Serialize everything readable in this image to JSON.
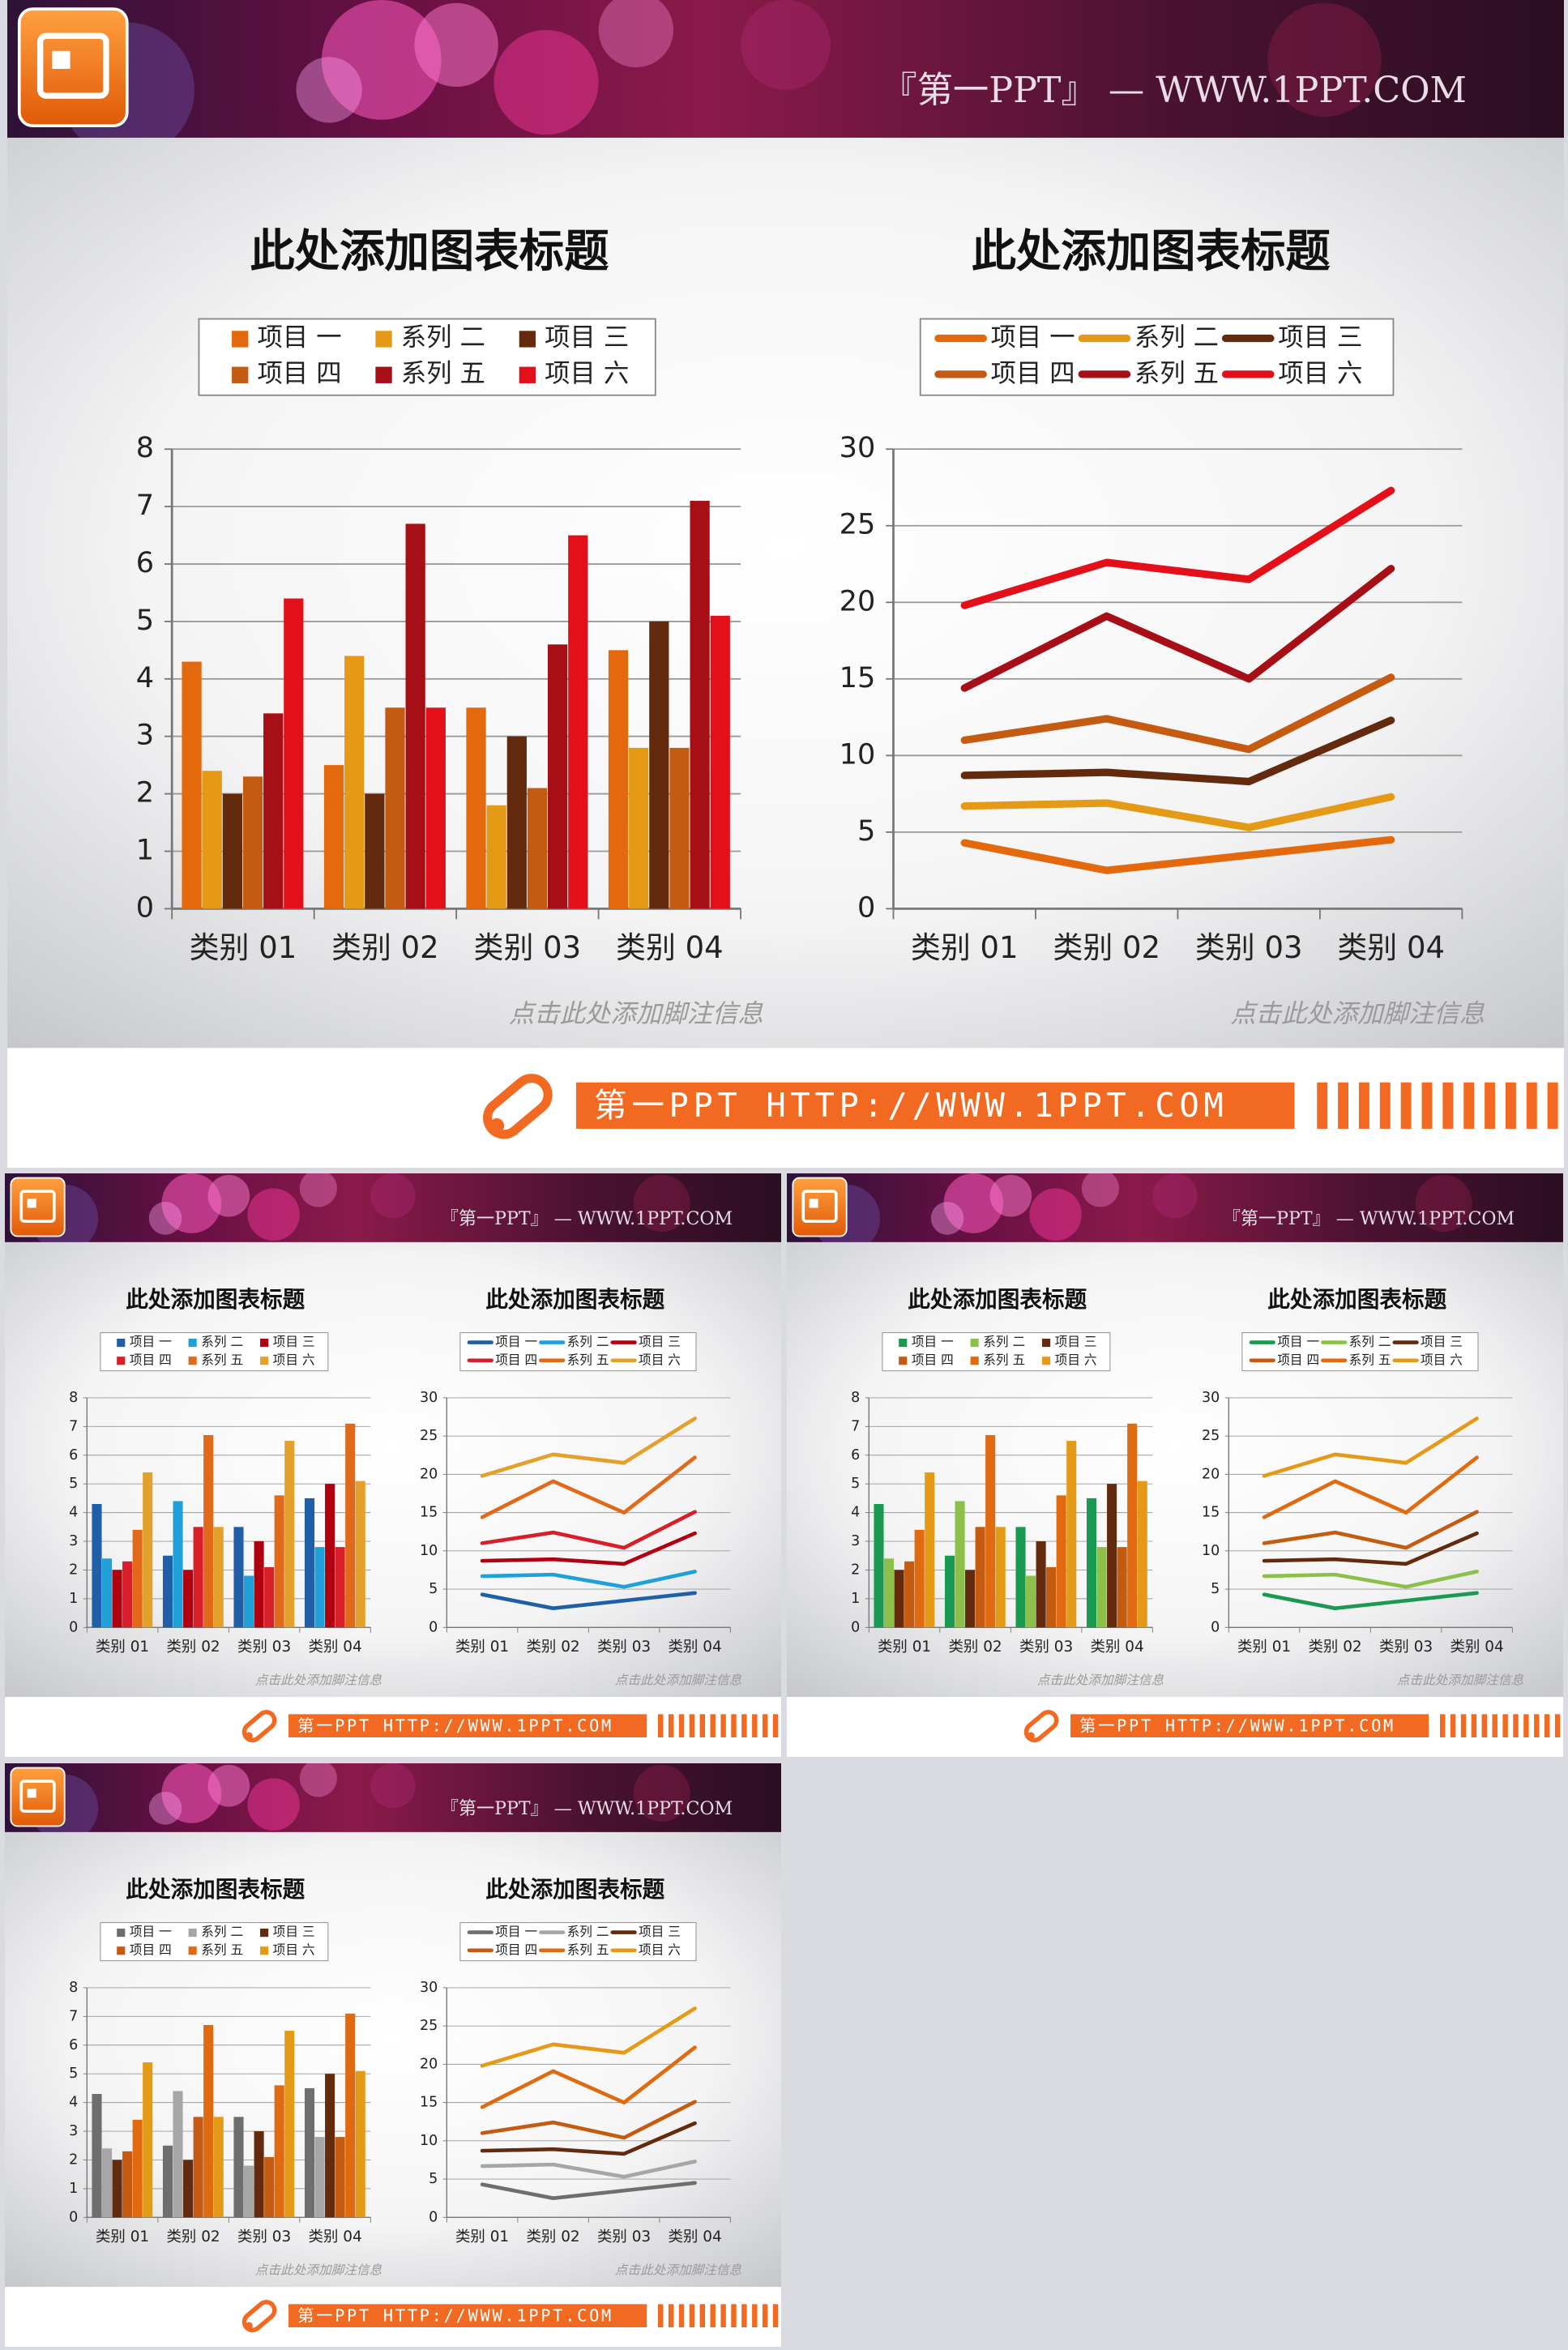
{
  "slides": [
    {
      "brand": "『第一PPT』 — WWW.1PPT.COM",
      "banner": "第一PPT HTTP://WWW.1PPT.COM"
    },
    {
      "brand": "『第一PPT』 — WWW.1PPT.COM",
      "banner": "第一PPT HTTP://WWW.1PPT.COM"
    },
    {
      "brand": "『第一PPT』 — WWW.1PPT.COM",
      "banner": "第一PPT HTTP://WWW.1PPT.COM"
    },
    {
      "brand": "『第一PPT』 — WWW.1PPT.COM",
      "banner": "第一PPT HTTP://WWW.1PPT.COM"
    }
  ],
  "chart_data": [
    {
      "type": "bar",
      "title": "此处添加图表标题",
      "footnote": "点击此处添加脚注信息",
      "categories": [
        "类别 01",
        "类别 02",
        "类别 03",
        "类别 04"
      ],
      "series": [
        {
          "name": "项目 一",
          "color": "#e4680c",
          "values": [
            4.3,
            2.5,
            3.5,
            4.5
          ]
        },
        {
          "name": "系列 二",
          "color": "#e59a17",
          "values": [
            2.4,
            4.4,
            1.8,
            2.8
          ]
        },
        {
          "name": "项目 三",
          "color": "#632a0d",
          "values": [
            2.0,
            2.0,
            3.0,
            5.0
          ]
        },
        {
          "name": "项目 四",
          "color": "#c55a11",
          "values": [
            2.3,
            3.5,
            2.1,
            2.8
          ]
        },
        {
          "name": "系列 五",
          "color": "#a50f15",
          "values": [
            3.4,
            6.7,
            4.6,
            7.1
          ]
        },
        {
          "name": "项目 六",
          "color": "#e3101a",
          "values": [
            5.4,
            3.5,
            6.5,
            5.1
          ]
        }
      ],
      "ylim": [
        0,
        8
      ],
      "yticks": [
        0,
        1,
        2,
        3,
        4,
        5,
        6,
        7,
        8
      ],
      "grid": true
    },
    {
      "type": "stacked_line",
      "title": "此处添加图表标题",
      "footnote": "点击此处添加脚注信息",
      "categories": [
        "类别 01",
        "类别 02",
        "类别 03",
        "类别 04"
      ],
      "series": [
        {
          "name": "项目 一",
          "color": "#e4680c",
          "values": [
            4.3,
            2.5,
            3.5,
            4.5
          ]
        },
        {
          "name": "系列 二",
          "color": "#e59a17",
          "values": [
            2.4,
            4.4,
            1.8,
            2.8
          ]
        },
        {
          "name": "项目 三",
          "color": "#632a0d",
          "values": [
            2.0,
            2.0,
            3.0,
            5.0
          ]
        },
        {
          "name": "项目 四",
          "color": "#c55a11",
          "values": [
            2.3,
            3.5,
            2.1,
            2.8
          ]
        },
        {
          "name": "系列 五",
          "color": "#a50f15",
          "values": [
            3.4,
            6.7,
            4.6,
            7.1
          ]
        },
        {
          "name": "项目 六",
          "color": "#e3101a",
          "values": [
            5.4,
            3.5,
            6.5,
            5.1
          ]
        }
      ],
      "ylim": [
        0,
        30
      ],
      "yticks": [
        0,
        5,
        10,
        15,
        20,
        25,
        30
      ],
      "grid": true
    },
    {
      "type": "bar",
      "title": "此处添加图表标题",
      "footnote": "点击此处添加脚注信息",
      "categories": [
        "类别 01",
        "类别 02",
        "类别 03",
        "类别 04"
      ],
      "series": [
        {
          "name": "项目 一",
          "color": "#1f5fa8",
          "values": [
            4.3,
            2.5,
            3.5,
            4.5
          ]
        },
        {
          "name": "系列 二",
          "color": "#1fa0d8",
          "values": [
            2.4,
            4.4,
            1.8,
            2.8
          ]
        },
        {
          "name": "项目 三",
          "color": "#b00010",
          "values": [
            2.0,
            2.0,
            3.0,
            5.0
          ]
        },
        {
          "name": "项目 四",
          "color": "#d81e28",
          "values": [
            2.3,
            3.5,
            2.1,
            2.8
          ]
        },
        {
          "name": "系列 五",
          "color": "#e06a1a",
          "values": [
            3.4,
            6.7,
            4.6,
            7.1
          ]
        },
        {
          "name": "项目 六",
          "color": "#e3a02a",
          "values": [
            5.4,
            3.5,
            6.5,
            5.1
          ]
        }
      ],
      "ylim": [
        0,
        8
      ],
      "yticks": [
        0,
        1,
        2,
        3,
        4,
        5,
        6,
        7,
        8
      ],
      "grid": true
    },
    {
      "type": "stacked_line",
      "title": "此处添加图表标题",
      "footnote": "点击此处添加脚注信息",
      "categories": [
        "类别 01",
        "类别 02",
        "类别 03",
        "类别 04"
      ],
      "series": [
        {
          "name": "项目 一",
          "color": "#1f5fa8",
          "values": [
            4.3,
            2.5,
            3.5,
            4.5
          ]
        },
        {
          "name": "系列 二",
          "color": "#1fa0d8",
          "values": [
            2.4,
            4.4,
            1.8,
            2.8
          ]
        },
        {
          "name": "项目 三",
          "color": "#b00010",
          "values": [
            2.0,
            2.0,
            3.0,
            5.0
          ]
        },
        {
          "name": "项目 四",
          "color": "#d81e28",
          "values": [
            2.3,
            3.5,
            2.1,
            2.8
          ]
        },
        {
          "name": "系列 五",
          "color": "#e06a1a",
          "values": [
            3.4,
            6.7,
            4.6,
            7.1
          ]
        },
        {
          "name": "项目 六",
          "color": "#e3a02a",
          "values": [
            5.4,
            3.5,
            6.5,
            5.1
          ]
        }
      ],
      "ylim": [
        0,
        30
      ],
      "yticks": [
        0,
        5,
        10,
        15,
        20,
        25,
        30
      ],
      "grid": true
    },
    {
      "type": "bar",
      "title": "此处添加图表标题",
      "footnote": "点击此处添加脚注信息",
      "categories": [
        "类别 01",
        "类别 02",
        "类别 03",
        "类别 04"
      ],
      "series": [
        {
          "name": "项目 一",
          "color": "#1a9a50",
          "values": [
            4.3,
            2.5,
            3.5,
            4.5
          ]
        },
        {
          "name": "系列 二",
          "color": "#8cc04a",
          "values": [
            2.4,
            4.4,
            1.8,
            2.8
          ]
        },
        {
          "name": "项目 三",
          "color": "#632a0d",
          "values": [
            2.0,
            2.0,
            3.0,
            5.0
          ]
        },
        {
          "name": "项目 四",
          "color": "#c55a11",
          "values": [
            2.3,
            3.5,
            2.1,
            2.8
          ]
        },
        {
          "name": "系列 五",
          "color": "#e06a10",
          "values": [
            3.4,
            6.7,
            4.6,
            7.1
          ]
        },
        {
          "name": "项目 六",
          "color": "#e59a17",
          "values": [
            5.4,
            3.5,
            6.5,
            5.1
          ]
        }
      ],
      "ylim": [
        0,
        8
      ],
      "yticks": [
        0,
        1,
        2,
        3,
        4,
        5,
        6,
        7,
        8
      ],
      "grid": true
    },
    {
      "type": "stacked_line",
      "title": "此处添加图表标题",
      "footnote": "点击此处添加脚注信息",
      "categories": [
        "类别 01",
        "类别 02",
        "类别 03",
        "类别 04"
      ],
      "series": [
        {
          "name": "项目 一",
          "color": "#1a9a50",
          "values": [
            4.3,
            2.5,
            3.5,
            4.5
          ]
        },
        {
          "name": "系列 二",
          "color": "#8cc04a",
          "values": [
            2.4,
            4.4,
            1.8,
            2.8
          ]
        },
        {
          "name": "项目 三",
          "color": "#632a0d",
          "values": [
            2.0,
            2.0,
            3.0,
            5.0
          ]
        },
        {
          "name": "项目 四",
          "color": "#c55a11",
          "values": [
            2.3,
            3.5,
            2.1,
            2.8
          ]
        },
        {
          "name": "系列 五",
          "color": "#e06a10",
          "values": [
            3.4,
            6.7,
            4.6,
            7.1
          ]
        },
        {
          "name": "项目 六",
          "color": "#e59a17",
          "values": [
            5.4,
            3.5,
            6.5,
            5.1
          ]
        }
      ],
      "ylim": [
        0,
        30
      ],
      "yticks": [
        0,
        5,
        10,
        15,
        20,
        25,
        30
      ],
      "grid": true
    },
    {
      "type": "bar",
      "title": "此处添加图表标题",
      "footnote": "点击此处添加脚注信息",
      "categories": [
        "类别 01",
        "类别 02",
        "类别 03",
        "类别 04"
      ],
      "series": [
        {
          "name": "项目 一",
          "color": "#6e6e6e",
          "values": [
            4.3,
            2.5,
            3.5,
            4.5
          ]
        },
        {
          "name": "系列 二",
          "color": "#a6a6a6",
          "values": [
            2.4,
            4.4,
            1.8,
            2.8
          ]
        },
        {
          "name": "项目 三",
          "color": "#632a0d",
          "values": [
            2.0,
            2.0,
            3.0,
            5.0
          ]
        },
        {
          "name": "项目 四",
          "color": "#c55a11",
          "values": [
            2.3,
            3.5,
            2.1,
            2.8
          ]
        },
        {
          "name": "系列 五",
          "color": "#e06a10",
          "values": [
            3.4,
            6.7,
            4.6,
            7.1
          ]
        },
        {
          "name": "项目 六",
          "color": "#e59a17",
          "values": [
            5.4,
            3.5,
            6.5,
            5.1
          ]
        }
      ],
      "ylim": [
        0,
        8
      ],
      "yticks": [
        0,
        1,
        2,
        3,
        4,
        5,
        6,
        7,
        8
      ],
      "grid": true
    },
    {
      "type": "stacked_line",
      "title": "此处添加图表标题",
      "footnote": "点击此处添加脚注信息",
      "categories": [
        "类别 01",
        "类别 02",
        "类别 03",
        "类别 04"
      ],
      "series": [
        {
          "name": "项目 一",
          "color": "#6e6e6e",
          "values": [
            4.3,
            2.5,
            3.5,
            4.5
          ]
        },
        {
          "name": "系列 二",
          "color": "#a6a6a6",
          "values": [
            2.4,
            4.4,
            1.8,
            2.8
          ]
        },
        {
          "name": "项目 三",
          "color": "#632a0d",
          "values": [
            2.0,
            2.0,
            3.0,
            5.0
          ]
        },
        {
          "name": "项目 四",
          "color": "#c55a11",
          "values": [
            2.3,
            3.5,
            2.1,
            2.8
          ]
        },
        {
          "name": "系列 五",
          "color": "#e06a10",
          "values": [
            3.4,
            6.7,
            4.6,
            7.1
          ]
        },
        {
          "name": "项目 六",
          "color": "#e59a17",
          "values": [
            5.4,
            3.5,
            6.5,
            5.1
          ]
        }
      ],
      "ylim": [
        0,
        30
      ],
      "yticks": [
        0,
        5,
        10,
        15,
        20,
        25,
        30
      ],
      "grid": true
    }
  ]
}
